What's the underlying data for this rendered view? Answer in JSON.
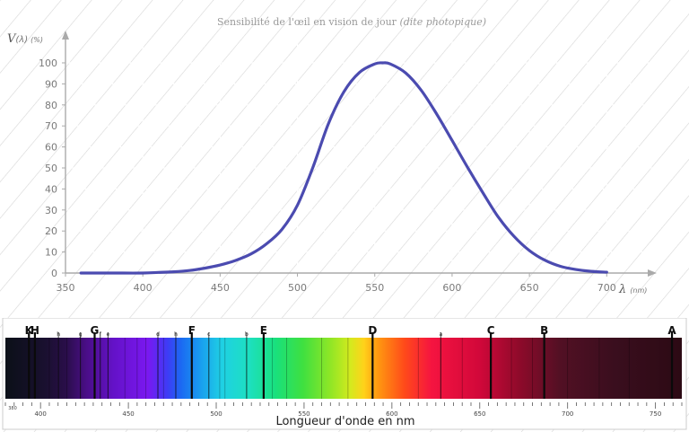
{
  "chart_data": {
    "type": "line",
    "title_main": "Sensibilité de l'œil en vision de jour ",
    "title_italic": "(dite photopique)",
    "ylabel_main": "V",
    "ylabel_lambda": "(λ)",
    "ylabel_unit": "(%)",
    "xlabel_main": "λ",
    "xlabel_unit": "(nm)",
    "xlim": [
      350,
      730
    ],
    "ylim": [
      0,
      105
    ],
    "x_ticks": [
      350,
      400,
      450,
      500,
      550,
      600,
      650,
      700
    ],
    "y_ticks": [
      0,
      10,
      20,
      30,
      40,
      50,
      60,
      70,
      80,
      90,
      100
    ],
    "grid": true,
    "series": [
      {
        "color": "#4b4bb0",
        "x": [
          360,
          380,
          400,
          410,
          420,
          430,
          440,
          450,
          460,
          470,
          480,
          490,
          500,
          510,
          520,
          530,
          540,
          550,
          555,
          560,
          570,
          580,
          590,
          600,
          610,
          620,
          630,
          640,
          650,
          660,
          670,
          680,
          690,
          700
        ],
        "y": [
          0,
          0,
          0,
          0.3,
          0.6,
          1.2,
          2.3,
          3.8,
          6.0,
          9.1,
          13.9,
          20.8,
          32.3,
          50.3,
          71.0,
          86.2,
          95.4,
          99.5,
          100,
          99.5,
          95.2,
          87.0,
          75.7,
          63.1,
          50.3,
          38.1,
          26.5,
          17.5,
          10.7,
          6.1,
          3.2,
          1.7,
          0.8,
          0.4
        ]
      }
    ]
  },
  "spectrum": {
    "xlabel": "Longueur d'onde en nm",
    "tick_labels": [
      "400",
      "450",
      "500",
      "550",
      "600",
      "650",
      "700",
      "750"
    ],
    "edge_left": "380",
    "fraunhofer": [
      {
        "label": "K",
        "nm": 393.4,
        "big": true
      },
      {
        "label": "H",
        "nm": 396.8,
        "big": true
      },
      {
        "label": "h",
        "nm": 410.2,
        "big": false
      },
      {
        "label": "g",
        "nm": 422.7,
        "big": false
      },
      {
        "label": "G",
        "nm": 430.8,
        "big": true
      },
      {
        "label": "f",
        "nm": 434.0,
        "big": false
      },
      {
        "label": "e",
        "nm": 438.4,
        "big": false
      },
      {
        "label": "d",
        "nm": 466.8,
        "big": false
      },
      {
        "label": "h",
        "nm": 477.0,
        "big": false
      },
      {
        "label": "F",
        "nm": 486.1,
        "big": true
      },
      {
        "label": "c",
        "nm": 495.8,
        "big": false
      },
      {
        "label": "b",
        "nm": 517.3,
        "big": false
      },
      {
        "label": "E",
        "nm": 527.0,
        "big": true
      },
      {
        "label": "D",
        "nm": 589.0,
        "big": true
      },
      {
        "label": "a",
        "nm": 627.8,
        "big": false
      },
      {
        "label": "C",
        "nm": 656.3,
        "big": true
      },
      {
        "label": "B",
        "nm": 686.7,
        "big": true
      },
      {
        "label": "A",
        "nm": 759.4,
        "big": true
      }
    ]
  }
}
